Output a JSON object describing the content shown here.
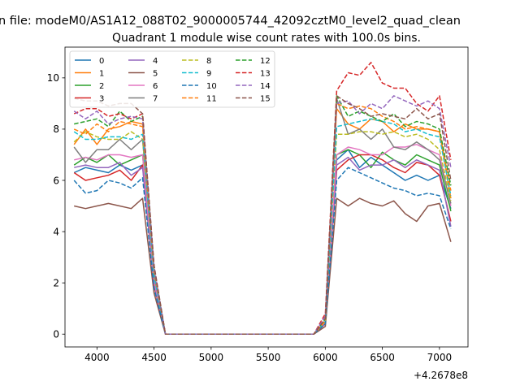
{
  "figure": {
    "suptitle": "n file: modeM0/AS1A12_088T02_9000005744_42092cztM0_level2_quad_clean"
  },
  "chart_data": {
    "type": "line",
    "title": "Quadrant 1 module wise count rates with 100.0s bins.",
    "xlabel": "",
    "ylabel": "",
    "x_offset_label": "+4.2678e8",
    "xlim": [
      3720,
      7250
    ],
    "ylim": [
      -0.5,
      11.2
    ],
    "xticks": [
      4000,
      4500,
      5000,
      5500,
      6000,
      6500,
      7000
    ],
    "yticks": [
      0,
      2,
      4,
      6,
      8,
      10
    ],
    "legend_position": "upper-left",
    "legend_columns": 4,
    "grid": false,
    "x": [
      3800,
      3900,
      4000,
      4100,
      4200,
      4300,
      4400,
      4500,
      4600,
      4700,
      4800,
      4900,
      5000,
      5100,
      5200,
      5300,
      5400,
      5500,
      5600,
      5700,
      5800,
      5900,
      6000,
      6100,
      6200,
      6300,
      6400,
      6500,
      6600,
      6700,
      6800,
      6900,
      7000,
      7100
    ],
    "series": [
      {
        "name": "0",
        "color": "#1f77b4",
        "dashed": false,
        "values": [
          6.3,
          6.5,
          6.4,
          6.3,
          6.6,
          6.4,
          6.6,
          2.0,
          0.0,
          0.0,
          0.0,
          0.0,
          0.0,
          0.0,
          0.0,
          0.0,
          0.0,
          0.0,
          0.0,
          0.0,
          0.0,
          0.0,
          0.4,
          6.8,
          7.2,
          6.5,
          6.9,
          6.6,
          6.3,
          6.0,
          6.2,
          6.0,
          6.2,
          4.9
        ]
      },
      {
        "name": "1",
        "color": "#ff7f0e",
        "dashed": false,
        "values": [
          7.4,
          8.0,
          7.4,
          8.0,
          8.1,
          8.3,
          8.2,
          2.4,
          0.0,
          0.0,
          0.0,
          0.0,
          0.0,
          0.0,
          0.0,
          0.0,
          0.0,
          0.0,
          0.0,
          0.0,
          0.0,
          0.0,
          0.5,
          8.8,
          8.2,
          8.0,
          8.4,
          8.3,
          7.9,
          8.2,
          8.0,
          8.0,
          7.9,
          5.3
        ]
      },
      {
        "name": "2",
        "color": "#2ca02c",
        "dashed": false,
        "values": [
          6.6,
          6.9,
          6.7,
          7.0,
          6.6,
          6.8,
          7.0,
          2.1,
          0.0,
          0.0,
          0.0,
          0.0,
          0.0,
          0.0,
          0.0,
          0.0,
          0.0,
          0.0,
          0.0,
          0.0,
          0.0,
          0.0,
          0.5,
          7.0,
          7.2,
          7.0,
          6.5,
          7.1,
          6.8,
          6.6,
          7.0,
          6.8,
          6.6,
          4.8
        ]
      },
      {
        "name": "3",
        "color": "#d62728",
        "dashed": false,
        "values": [
          6.3,
          6.0,
          6.1,
          6.2,
          6.4,
          6.0,
          6.6,
          1.9,
          0.0,
          0.0,
          0.0,
          0.0,
          0.0,
          0.0,
          0.0,
          0.0,
          0.0,
          0.0,
          0.0,
          0.0,
          0.0,
          0.0,
          0.4,
          6.4,
          6.8,
          7.0,
          7.0,
          6.8,
          6.5,
          6.3,
          6.7,
          6.6,
          6.2,
          4.4
        ]
      },
      {
        "name": "4",
        "color": "#9467bd",
        "dashed": false,
        "values": [
          6.5,
          6.6,
          6.5,
          6.5,
          6.7,
          6.2,
          6.5,
          2.0,
          0.0,
          0.0,
          0.0,
          0.0,
          0.0,
          0.0,
          0.0,
          0.0,
          0.0,
          0.0,
          0.0,
          0.0,
          0.0,
          0.0,
          0.4,
          6.6,
          6.9,
          6.4,
          6.6,
          6.6,
          6.8,
          6.5,
          6.8,
          6.6,
          6.4,
          4.2
        ]
      },
      {
        "name": "5",
        "color": "#8c564b",
        "dashed": false,
        "values": [
          5.0,
          4.9,
          5.0,
          5.1,
          5.0,
          4.9,
          5.3,
          1.6,
          0.0,
          0.0,
          0.0,
          0.0,
          0.0,
          0.0,
          0.0,
          0.0,
          0.0,
          0.0,
          0.0,
          0.0,
          0.0,
          0.0,
          0.3,
          5.3,
          5.0,
          5.3,
          5.1,
          5.0,
          5.2,
          4.7,
          4.4,
          5.0,
          5.1,
          3.6
        ]
      },
      {
        "name": "6",
        "color": "#e377c2",
        "dashed": false,
        "values": [
          6.8,
          6.9,
          6.8,
          7.0,
          7.0,
          6.9,
          7.0,
          2.1,
          0.0,
          0.0,
          0.0,
          0.0,
          0.0,
          0.0,
          0.0,
          0.0,
          0.0,
          0.0,
          0.0,
          0.0,
          0.0,
          0.0,
          0.5,
          7.0,
          7.3,
          7.2,
          7.0,
          7.0,
          7.3,
          7.3,
          7.4,
          7.2,
          7.0,
          5.0
        ]
      },
      {
        "name": "7",
        "color": "#7f7f7f",
        "dashed": false,
        "values": [
          7.3,
          6.7,
          7.2,
          7.2,
          7.6,
          7.2,
          7.6,
          2.3,
          0.0,
          0.0,
          0.0,
          0.0,
          0.0,
          0.0,
          0.0,
          0.0,
          0.0,
          0.0,
          0.0,
          0.0,
          0.0,
          0.0,
          0.5,
          9.2,
          7.8,
          8.0,
          7.6,
          8.0,
          7.3,
          7.2,
          7.5,
          7.2,
          6.8,
          5.1
        ]
      },
      {
        "name": "8",
        "color": "#bcbd22",
        "dashed": true,
        "values": [
          7.5,
          7.9,
          7.7,
          7.6,
          7.6,
          7.9,
          7.6,
          2.3,
          0.0,
          0.0,
          0.0,
          0.0,
          0.0,
          0.0,
          0.0,
          0.0,
          0.0,
          0.0,
          0.0,
          0.0,
          0.0,
          0.0,
          0.5,
          7.8,
          7.8,
          7.9,
          7.9,
          7.8,
          7.9,
          7.7,
          7.8,
          7.6,
          7.2,
          5.2
        ]
      },
      {
        "name": "9",
        "color": "#17becf",
        "dashed": true,
        "values": [
          7.9,
          7.6,
          7.6,
          7.7,
          7.7,
          7.6,
          7.8,
          2.3,
          0.0,
          0.0,
          0.0,
          0.0,
          0.0,
          0.0,
          0.0,
          0.0,
          0.0,
          0.0,
          0.0,
          0.0,
          0.0,
          0.0,
          0.5,
          8.1,
          8.2,
          8.3,
          8.4,
          8.3,
          8.2,
          7.9,
          8.0,
          7.8,
          7.7,
          5.4
        ]
      },
      {
        "name": "10",
        "color": "#1f77b4",
        "dashed": true,
        "values": [
          6.0,
          5.5,
          5.6,
          6.0,
          5.9,
          5.7,
          6.1,
          1.8,
          0.0,
          0.0,
          0.0,
          0.0,
          0.0,
          0.0,
          0.0,
          0.0,
          0.0,
          0.0,
          0.0,
          0.0,
          0.0,
          0.0,
          0.4,
          6.0,
          6.5,
          6.3,
          6.1,
          5.9,
          5.7,
          5.6,
          5.4,
          5.5,
          5.4,
          4.1
        ]
      },
      {
        "name": "11",
        "color": "#ff7f0e",
        "dashed": true,
        "values": [
          8.0,
          7.8,
          8.2,
          7.9,
          8.3,
          8.2,
          8.1,
          2.5,
          0.0,
          0.0,
          0.0,
          0.0,
          0.0,
          0.0,
          0.0,
          0.0,
          0.0,
          0.0,
          0.0,
          0.0,
          0.0,
          0.0,
          0.5,
          9.0,
          8.8,
          8.9,
          8.8,
          8.5,
          8.3,
          8.0,
          8.1,
          8.0,
          7.9,
          5.6
        ]
      },
      {
        "name": "12",
        "color": "#2ca02c",
        "dashed": true,
        "values": [
          8.2,
          8.3,
          8.4,
          8.1,
          8.7,
          8.3,
          8.5,
          2.6,
          0.0,
          0.0,
          0.0,
          0.0,
          0.0,
          0.0,
          0.0,
          0.0,
          0.0,
          0.0,
          0.0,
          0.0,
          0.0,
          0.0,
          0.6,
          9.3,
          8.5,
          8.7,
          8.5,
          8.3,
          8.6,
          8.1,
          8.3,
          8.2,
          8.0,
          5.8
        ]
      },
      {
        "name": "13",
        "color": "#d62728",
        "dashed": true,
        "values": [
          8.6,
          8.8,
          8.8,
          8.5,
          8.6,
          8.4,
          8.6,
          2.6,
          0.0,
          0.0,
          0.0,
          0.0,
          0.0,
          0.0,
          0.0,
          0.0,
          0.0,
          0.0,
          0.0,
          0.0,
          0.0,
          0.0,
          0.8,
          9.5,
          10.2,
          10.1,
          10.6,
          9.8,
          9.6,
          9.6,
          9.0,
          8.7,
          9.3,
          6.8
        ]
      },
      {
        "name": "14",
        "color": "#9467bd",
        "dashed": true,
        "values": [
          8.7,
          8.4,
          8.7,
          8.2,
          8.4,
          8.5,
          8.4,
          2.6,
          0.0,
          0.0,
          0.0,
          0.0,
          0.0,
          0.0,
          0.0,
          0.0,
          0.0,
          0.0,
          0.0,
          0.0,
          0.0,
          0.0,
          0.7,
          9.0,
          9.1,
          8.6,
          9.0,
          8.8,
          9.3,
          9.1,
          8.9,
          9.1,
          8.8,
          6.5
        ]
      },
      {
        "name": "15",
        "color": "#8c564b",
        "dashed": true,
        "values": [
          9.2,
          9.1,
          9.1,
          8.9,
          9.0,
          9.0,
          8.6,
          2.7,
          0.0,
          0.0,
          0.0,
          0.0,
          0.0,
          0.0,
          0.0,
          0.0,
          0.0,
          0.0,
          0.0,
          0.0,
          0.0,
          0.0,
          0.6,
          9.3,
          9.0,
          8.8,
          8.5,
          8.6,
          8.5,
          8.4,
          8.8,
          8.4,
          8.6,
          6.0
        ]
      }
    ]
  }
}
